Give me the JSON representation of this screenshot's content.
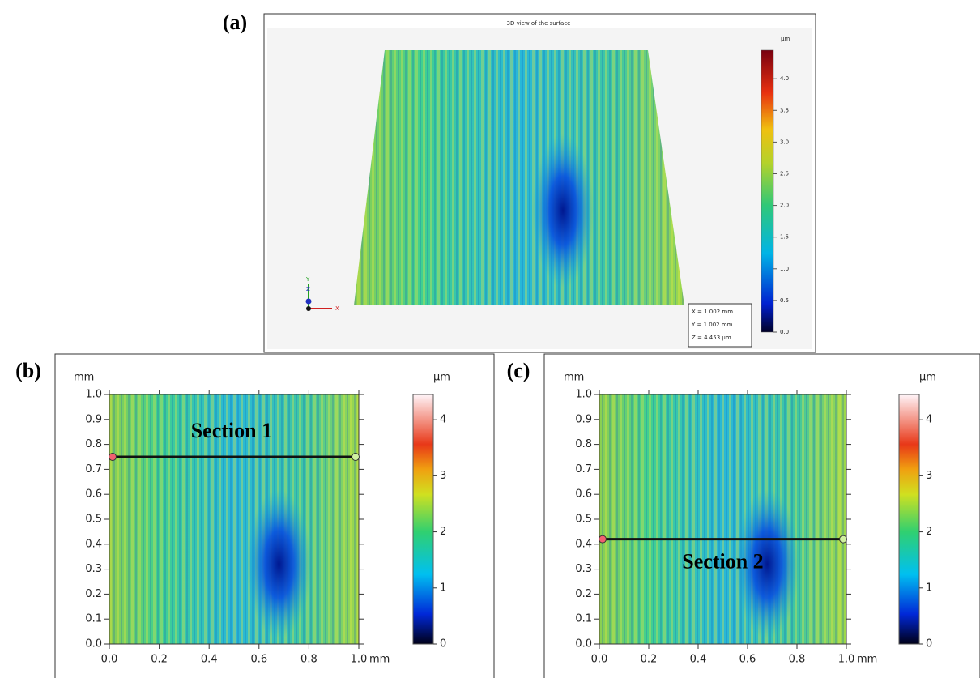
{
  "panels": [
    {
      "label": "(a)",
      "title": "3D view of the surface",
      "colorbar": {
        "unit": "µm",
        "clim": [
          0,
          4.45
        ],
        "ticks": [
          {
            "value": 0,
            "label": "0.0"
          },
          {
            "value": 0.5,
            "label": "0.5"
          },
          {
            "value": 1,
            "label": "1.0"
          },
          {
            "value": 1.5,
            "label": "1.5"
          },
          {
            "value": 2,
            "label": "2.0"
          },
          {
            "value": 2.5,
            "label": "2.5"
          },
          {
            "value": 3,
            "label": "3.0"
          },
          {
            "value": 3.5,
            "label": "3.5"
          },
          {
            "value": 4,
            "label": "4.0"
          }
        ]
      },
      "info": [
        "X = 1.002 mm",
        "Y = 1.002 mm",
        "Z = 4.453 µm"
      ],
      "axes": [
        "X",
        "Y",
        "Z"
      ]
    },
    {
      "label": "(b)",
      "y_unit": "mm",
      "x_unit": "mm",
      "section": "Section 1",
      "section_y": 0.75,
      "ticks": [
        {
          "value": 0,
          "label": "0.0"
        },
        {
          "value": 0.1,
          "label": "0.1"
        },
        {
          "value": 0.2,
          "label": "0.2"
        },
        {
          "value": 0.3,
          "label": "0.3"
        },
        {
          "value": 0.4,
          "label": "0.4"
        },
        {
          "value": 0.5,
          "label": "0.5"
        },
        {
          "value": 0.6,
          "label": "0.6"
        },
        {
          "value": 0.7,
          "label": "0.7"
        },
        {
          "value": 0.8,
          "label": "0.8"
        },
        {
          "value": 0.9,
          "label": "0.9"
        },
        {
          "value": 1,
          "label": "1.0"
        }
      ],
      "xticks": [
        {
          "value": 0,
          "label": "0.0"
        },
        {
          "value": 0.2,
          "label": "0.2"
        },
        {
          "value": 0.4,
          "label": "0.4"
        },
        {
          "value": 0.6,
          "label": "0.6"
        },
        {
          "value": 0.8,
          "label": "0.8"
        },
        {
          "value": 1,
          "label": "1.0"
        }
      ],
      "colorbar": {
        "unit": "µm",
        "clim": [
          0,
          4.45
        ],
        "ticks": [
          0,
          1,
          2,
          3,
          4
        ]
      }
    },
    {
      "label": "(c)",
      "y_unit": "mm",
      "x_unit": "mm",
      "section": "Section 2",
      "section_y": 0.42,
      "ticks": [
        {
          "value": 0,
          "label": "0.0"
        },
        {
          "value": 0.1,
          "label": "0.1"
        },
        {
          "value": 0.2,
          "label": "0.2"
        },
        {
          "value": 0.3,
          "label": "0.3"
        },
        {
          "value": 0.4,
          "label": "0.4"
        },
        {
          "value": 0.5,
          "label": "0.5"
        },
        {
          "value": 0.6,
          "label": "0.6"
        },
        {
          "value": 0.7,
          "label": "0.7"
        },
        {
          "value": 0.8,
          "label": "0.8"
        },
        {
          "value": 0.9,
          "label": "0.9"
        },
        {
          "value": 1,
          "label": "1.0"
        }
      ],
      "xticks": [
        {
          "value": 0,
          "label": "0.0"
        },
        {
          "value": 0.2,
          "label": "0.2"
        },
        {
          "value": 0.4,
          "label": "0.4"
        },
        {
          "value": 0.6,
          "label": "0.6"
        },
        {
          "value": 0.8,
          "label": "0.8"
        },
        {
          "value": 1,
          "label": "1.0"
        }
      ],
      "colorbar": {
        "unit": "µm",
        "clim": [
          0,
          4.45
        ],
        "ticks": [
          0,
          1,
          2,
          3,
          4
        ]
      }
    }
  ]
}
